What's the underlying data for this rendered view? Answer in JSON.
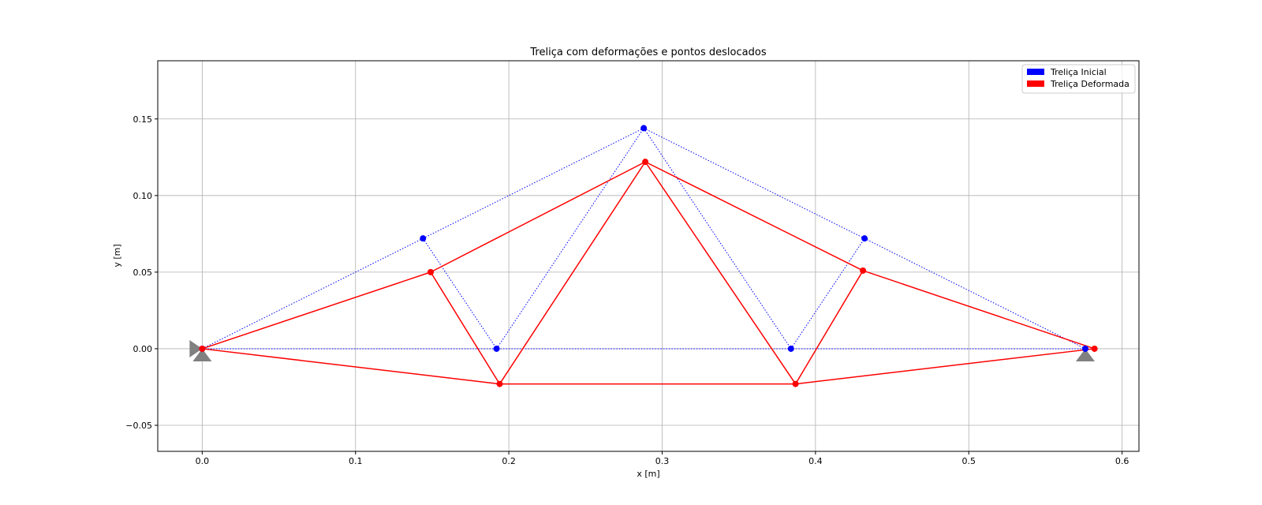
{
  "chart_data": {
    "type": "line",
    "title": "Treliça com deformações e pontos deslocados",
    "xlabel": "x [m]",
    "ylabel": "y [m]",
    "xlim": [
      -0.029,
      0.611
    ],
    "ylim": [
      -0.067,
      0.188
    ],
    "x_ticks": [
      0.0,
      0.1,
      0.2,
      0.3,
      0.4,
      0.5,
      0.6
    ],
    "x_tick_labels": [
      "0.0",
      "0.1",
      "0.2",
      "0.3",
      "0.4",
      "0.5",
      "0.6"
    ],
    "y_ticks": [
      -0.05,
      0.0,
      0.05,
      0.1,
      0.15
    ],
    "y_tick_labels": [
      "−0.05",
      "0.00",
      "0.05",
      "0.10",
      "0.15"
    ],
    "grid": true,
    "legend_position": "top-right",
    "series": [
      {
        "name": "Treliça Inicial",
        "color": "#0000ff",
        "line_style": "dotted",
        "nodes": [
          [
            0.0,
            0.0
          ],
          [
            0.144,
            0.072
          ],
          [
            0.192,
            0.0
          ],
          [
            0.288,
            0.144
          ],
          [
            0.384,
            0.0
          ],
          [
            0.432,
            0.072
          ],
          [
            0.576,
            0.0
          ]
        ],
        "members": [
          [
            0,
            1
          ],
          [
            1,
            3
          ],
          [
            3,
            5
          ],
          [
            5,
            6
          ],
          [
            0,
            6
          ],
          [
            1,
            2
          ],
          [
            2,
            3
          ],
          [
            3,
            4
          ],
          [
            4,
            5
          ]
        ]
      },
      {
        "name": "Treliça Deformada",
        "color": "#ff0000",
        "line_style": "solid",
        "nodes": [
          [
            0.0,
            0.0
          ],
          [
            0.149,
            0.05
          ],
          [
            0.194,
            -0.023
          ],
          [
            0.289,
            0.122
          ],
          [
            0.387,
            -0.023
          ],
          [
            0.431,
            0.051
          ],
          [
            0.582,
            0.0
          ]
        ],
        "members": [
          [
            0,
            1
          ],
          [
            1,
            3
          ],
          [
            3,
            5
          ],
          [
            5,
            6
          ],
          [
            0,
            2
          ],
          [
            2,
            4
          ],
          [
            4,
            6
          ],
          [
            1,
            2
          ],
          [
            2,
            3
          ],
          [
            3,
            4
          ],
          [
            4,
            5
          ]
        ]
      }
    ],
    "supports": [
      {
        "type": "pin",
        "x": 0.0,
        "y": 0.0,
        "color": "#808080"
      },
      {
        "type": "roller",
        "x": 0.576,
        "y": 0.0,
        "color": "#808080"
      }
    ]
  }
}
